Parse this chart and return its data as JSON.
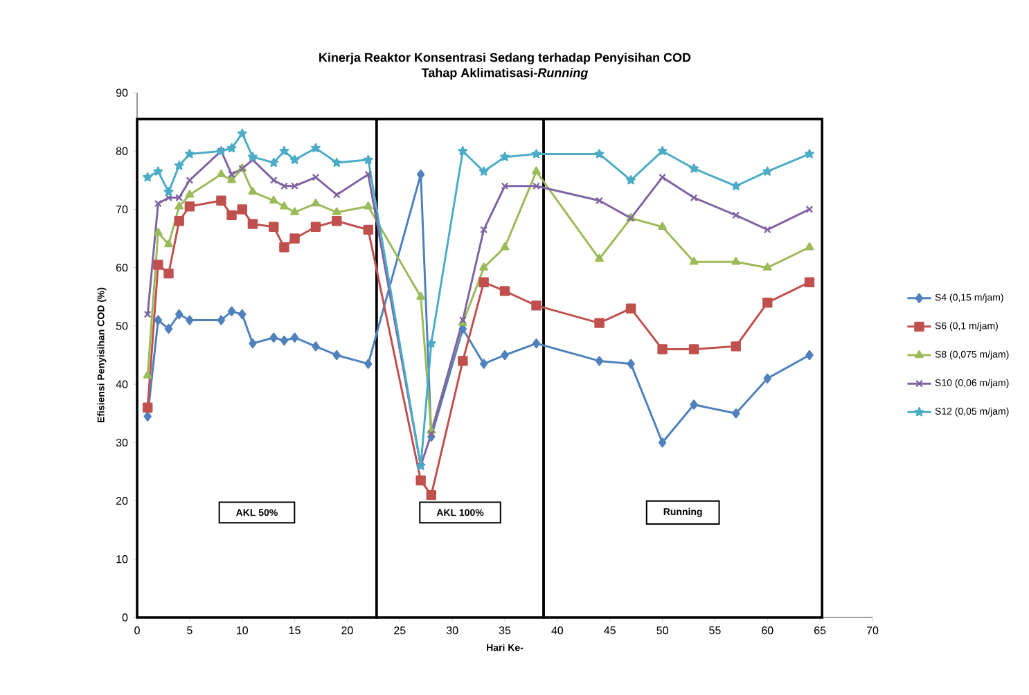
{
  "chart_data": {
    "type": "line",
    "title": "Kinerja Reaktor Konsentrasi Sedang terhadap Penyisihan COD",
    "subtitle": "Tahap Aklimatisasi-*Running*",
    "xlabel": "Hari Ke-",
    "ylabel": "Efisiensi Penyisihan COD (%)",
    "x": [
      1,
      2,
      3,
      4,
      5,
      8,
      9,
      10,
      11,
      13,
      14,
      15,
      17,
      19,
      22,
      27,
      28,
      31,
      33,
      35,
      38,
      44,
      47,
      50,
      53,
      57,
      60,
      64
    ],
    "series": [
      {
        "name": "S4 (0,15 m/jam)",
        "color": "#4f81bd",
        "marker": "diamond",
        "values": [
          34.5,
          51,
          49.5,
          52,
          51,
          51,
          52.5,
          52,
          47,
          48,
          47.5,
          48,
          46.5,
          45,
          43.5,
          76,
          31,
          49.5,
          43.5,
          45,
          47,
          44,
          43.5,
          30,
          36.5,
          35,
          41,
          45
        ]
      },
      {
        "name": "S6 (0,1 m/jam)",
        "color": "#c0504d",
        "marker": "square",
        "values": [
          36,
          60.5,
          59,
          68,
          70.5,
          71.5,
          69,
          70,
          67.5,
          67,
          63.5,
          65,
          67,
          68,
          66.5,
          23.5,
          21,
          44,
          57.5,
          56,
          53.5,
          50.5,
          53,
          46,
          46,
          46.5,
          54,
          57.5
        ]
      },
      {
        "name": "S8 (0,075 m/jam)",
        "color": "#9bbb59",
        "marker": "triangle",
        "values": [
          41.5,
          66,
          64,
          70.5,
          72.5,
          76,
          75,
          77,
          73,
          71.5,
          70.5,
          69.5,
          71,
          69.5,
          70.5,
          55,
          32,
          50.5,
          60,
          63.5,
          76.5,
          61.5,
          68.5,
          67,
          61,
          61,
          60,
          63.5
        ]
      },
      {
        "name": "S10 (0,06 m/jam)",
        "color": "#8064a2",
        "marker": "cross",
        "values": [
          52,
          71,
          72,
          72,
          75,
          80,
          76,
          77,
          78.5,
          75,
          74,
          74,
          75.5,
          72.5,
          76,
          26,
          31.5,
          51,
          66.5,
          74,
          74,
          71.5,
          68.5,
          75.5,
          72,
          69,
          66.5,
          70
        ]
      },
      {
        "name": "S12 (0,05 m/jam)",
        "color": "#4bacc6",
        "marker": "star",
        "values": [
          75.5,
          76.5,
          73,
          77.5,
          79.5,
          80,
          80.5,
          83,
          79,
          78,
          80,
          78.5,
          80.5,
          78,
          78.5,
          26,
          47,
          80,
          76.5,
          79,
          79.5,
          79.5,
          75,
          80,
          77,
          74,
          76.5,
          79.5
        ]
      }
    ],
    "xlim": [
      0,
      70
    ],
    "xticks": [
      0,
      5,
      10,
      15,
      20,
      25,
      30,
      35,
      40,
      45,
      50,
      55,
      60,
      65,
      70
    ],
    "ylim": [
      0,
      90
    ],
    "yticks": [
      0,
      10,
      20,
      30,
      40,
      50,
      60,
      70,
      80,
      90
    ],
    "bands": [
      {
        "axis": "x",
        "from": 0,
        "to": 22.8,
        "label": "AKL 50%"
      },
      {
        "axis": "x",
        "from": 22.8,
        "to": 38.7,
        "label": "AKL 100%"
      },
      {
        "axis": "x",
        "from": 38.7,
        "to": 65.2,
        "label": "Running"
      }
    ],
    "grid": false,
    "legend": "right",
    "line_style": "solid"
  }
}
